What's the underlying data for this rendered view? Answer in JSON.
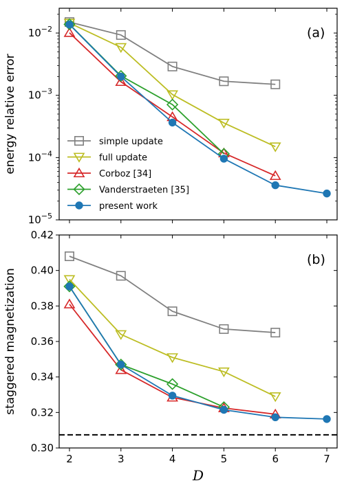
{
  "chart_data": [
    {
      "type": "line",
      "panel_label": "(a)",
      "xlabel": "",
      "ylabel": "energy relative error",
      "yscale": "log",
      "xlim": [
        1.8,
        7.2
      ],
      "ylim": [
        1e-05,
        0.025
      ],
      "xticks": [
        2,
        3,
        4,
        5,
        6,
        7
      ],
      "yticks": [
        1e-05,
        0.0001,
        0.001,
        0.01
      ],
      "ytick_labels": [
        {
          "base": "10",
          "exp": "−5"
        },
        {
          "base": "10",
          "exp": "−4"
        },
        {
          "base": "10",
          "exp": "−3"
        },
        {
          "base": "10",
          "exp": "−2"
        }
      ],
      "legend_position": "lower-left",
      "series": [
        {
          "name": "simple update",
          "color": "#808080",
          "marker": "square",
          "x": [
            2,
            3,
            4,
            5,
            6
          ],
          "y": [
            0.015,
            0.0093,
            0.0029,
            0.00168,
            0.0015
          ]
        },
        {
          "name": "full update",
          "color": "#bcbd22",
          "marker": "triangle-down",
          "x": [
            2,
            3,
            4,
            5,
            6
          ],
          "y": [
            0.0145,
            0.0059,
            0.00103,
            0.00036,
            0.00015
          ]
        },
        {
          "name": "Corboz [34]",
          "color": "#d62728",
          "marker": "triangle-up",
          "x": [
            2,
            3,
            4,
            5,
            6
          ],
          "y": [
            0.0101,
            0.00165,
            0.00045,
            0.000118,
            5.1e-05
          ]
        },
        {
          "name": "Vanderstraeten [35]",
          "color": "#2ca02c",
          "marker": "diamond",
          "x": [
            2,
            3,
            4,
            5
          ],
          "y": [
            0.0138,
            0.00205,
            0.00071,
            0.000115
          ]
        },
        {
          "name": "present work",
          "color": "#1f77b4",
          "marker": "circle",
          "x": [
            2,
            3,
            4,
            5,
            6,
            7
          ],
          "y": [
            0.0137,
            0.002,
            0.000365,
            9.6e-05,
            3.6e-05,
            2.65e-05
          ]
        }
      ]
    },
    {
      "type": "line",
      "panel_label": "(b)",
      "xlabel": "D",
      "ylabel": "staggered magnetization",
      "yscale": "linear",
      "xlim": [
        1.8,
        7.2
      ],
      "ylim": [
        0.3,
        0.42
      ],
      "xticks": [
        2,
        3,
        4,
        5,
        6,
        7
      ],
      "yticks": [
        0.3,
        0.32,
        0.34,
        0.36,
        0.38,
        0.4,
        0.42
      ],
      "ytick_labels": [
        "0.30",
        "0.32",
        "0.34",
        "0.36",
        "0.38",
        "0.40",
        "0.42"
      ],
      "reference_line": {
        "y": 0.3074,
        "style": "dashed",
        "color": "#000000"
      },
      "series": [
        {
          "name": "simple update",
          "color": "#808080",
          "marker": "square",
          "x": [
            2,
            3,
            4,
            5,
            6
          ],
          "y": [
            0.408,
            0.397,
            0.377,
            0.367,
            0.365
          ]
        },
        {
          "name": "full update",
          "color": "#bcbd22",
          "marker": "triangle-down",
          "x": [
            2,
            3,
            4,
            5,
            6
          ],
          "y": [
            0.395,
            0.364,
            0.351,
            0.343,
            0.329
          ]
        },
        {
          "name": "Corboz [34]",
          "color": "#d62728",
          "marker": "triangle-up",
          "x": [
            2,
            3,
            4,
            5,
            6
          ],
          "y": [
            0.381,
            0.344,
            0.3285,
            0.3225,
            0.319
          ]
        },
        {
          "name": "Vanderstraeten [35]",
          "color": "#2ca02c",
          "marker": "diamond",
          "x": [
            2,
            3,
            4,
            5
          ],
          "y": [
            0.391,
            0.347,
            0.336,
            0.323
          ]
        },
        {
          "name": "present work",
          "color": "#1f77b4",
          "marker": "circle",
          "x": [
            2,
            3,
            4,
            5,
            6,
            7
          ],
          "y": [
            0.391,
            0.347,
            0.3295,
            0.3215,
            0.3173,
            0.3163
          ]
        }
      ]
    }
  ]
}
